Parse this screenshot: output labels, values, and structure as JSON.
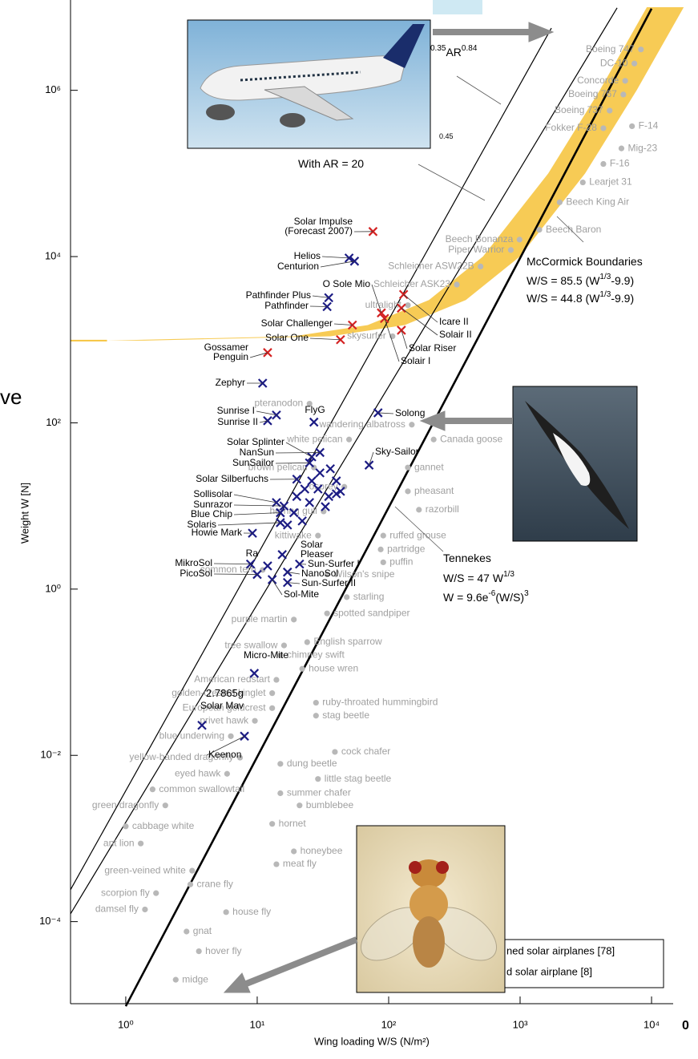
{
  "chart_data": {
    "type": "scatter",
    "xlabel": "Wing loading W/S (N/m²)",
    "ylabel": "Weight W [N]",
    "log_x": true,
    "log_y": true,
    "xlim": [
      0.38,
      14600
    ],
    "ylim": [
      1.03e-05,
      12200000.0
    ],
    "xticks": [
      {
        "value": 1,
        "label": "10⁰"
      },
      {
        "value": 10,
        "label": "10¹"
      },
      {
        "value": 100,
        "label": "10²"
      },
      {
        "value": 1000,
        "label": "10³"
      },
      {
        "value": 10000,
        "label": "10⁴"
      }
    ],
    "yticks": [
      {
        "value": 0.0001,
        "label": "10⁻⁴"
      },
      {
        "value": 0.01,
        "label": "10⁻²"
      },
      {
        "value": 1,
        "label": "10⁰"
      },
      {
        "value": 100,
        "label": "10²"
      },
      {
        "value": 10000,
        "label": "10⁴"
      },
      {
        "value": 1000000,
        "label": "10⁶"
      }
    ],
    "band": {
      "color": "#f6c542",
      "x_low": [
        0.72,
        18.95,
        69.3,
        202.6,
        521.7,
        1636,
        4036,
        9208
      ],
      "x_high": [
        1.38,
        36.2,
        132.3,
        386.6,
        995.6,
        3122,
        7704,
        17574
      ],
      "values": [
        975,
        1100,
        1500,
        3000,
        10000,
        100000,
        1000000,
        10000000
      ]
    },
    "lines": [
      {
        "color": "#000000",
        "width": 1.2,
        "x": [
          0.38,
          1730
        ],
        "values": [
          0.000242,
          5600000
        ]
      },
      {
        "color": "#000000",
        "width": 1.2,
        "x": [
          0.38,
          5470
        ],
        "values": [
          0.000124,
          9800000
        ]
      },
      {
        "color": "#000000",
        "width": 2.6,
        "x": [
          1,
          10000
        ],
        "values": [
          9.6e-06,
          9600000
        ]
      }
    ],
    "series": [
      {
        "color": "#b8b8b8",
        "marker": "dot",
        "labels": [
          "Boeing 747",
          "DC-10",
          "Concorde",
          "Boeing 767",
          "Boeing 737",
          "Fokker F-28",
          "F-14",
          "Mig-23",
          "F-16",
          "Learjet 31",
          "Beech King Air",
          "Beech Baron",
          "Beech Bonanza",
          "Piper Warrior",
          "Schleicher ASW22B",
          "Schleicher ASK23",
          "ultralight",
          "skysurfer",
          "pteranodon",
          "white pelican",
          "wandering albatross",
          "Canada goose",
          "gannet",
          "pheasant",
          "razorbill",
          "brown pelican",
          "osprey",
          "herring gull",
          "kittiwake",
          "ruffed grouse",
          "partridge",
          "puffin",
          "common tern",
          "Wilson's snipe",
          "starling",
          "spotted sandpiper",
          "purple martin",
          "tree swallow",
          "English sparrow",
          "chimney swift",
          "house wren",
          "American redstart",
          "golden-crested kinglet",
          "European goldcrest",
          "ruby-throated hummingbird",
          "stag beetle",
          "privet hawk",
          "blue underwing",
          "cock chafer",
          "yellow-banded dragonfly",
          "dung beetle",
          "eyed hawk",
          "little stag beetle",
          "common swallowtail",
          "summer chafer",
          "green dragonfly",
          "bumblebee",
          "hornet",
          "cabbage white",
          "ant lion",
          "honeybee",
          "meat fly",
          "green-veined white",
          "crane fly",
          "scorpion fly",
          "damsel fly",
          "house fly",
          "gnat",
          "hover fly",
          "midge"
        ],
        "x": [
          8300,
          7400,
          6300,
          6100,
          4800,
          4300,
          7100,
          5900,
          4300,
          3000,
          2000,
          1400,
          990,
          850,
          500,
          330,
          140,
          107,
          25,
          50,
          150,
          220,
          140,
          140,
          170,
          27,
          46,
          32,
          29,
          91,
          87,
          91,
          11,
          34,
          48,
          34,
          19,
          16,
          24,
          15,
          22,
          14,
          13,
          13,
          28,
          28,
          9.6,
          6.3,
          39,
          7.4,
          15,
          5.9,
          29,
          1.6,
          15,
          2.0,
          21,
          13,
          1.0,
          1.3,
          19,
          14,
          3.2,
          3.1,
          1.7,
          1.4,
          5.8,
          2.9,
          3.6,
          2.4
        ],
        "values": [
          3100000,
          2100000,
          1300000,
          890000,
          570000,
          350000,
          370000,
          200000,
          130000,
          78000,
          45000,
          21000,
          16000,
          12000,
          7600,
          4600,
          2600,
          1100,
          170,
          63,
          95,
          63,
          29,
          15,
          9,
          29,
          17,
          8.6,
          4.4,
          4.4,
          3.0,
          2.1,
          1.7,
          1.5,
          0.8,
          0.51,
          0.43,
          0.21,
          0.23,
          0.16,
          0.11,
          0.081,
          0.056,
          0.037,
          0.043,
          0.03,
          0.026,
          0.017,
          0.011,
          0.0094,
          0.0079,
          0.006,
          0.0052,
          0.0039,
          0.0035,
          0.0025,
          0.0025,
          0.0015,
          0.0014,
          0.00087,
          0.0007,
          0.00049,
          0.00041,
          0.00028,
          0.00022,
          0.00014,
          0.00013,
          7.6e-05,
          4.4e-05,
          2e-05
        ]
      },
      {
        "name": "ned solar airplanes [78]",
        "color": "#1c1c84",
        "marker": "x",
        "labels": [
          "Helios",
          "Centurion",
          "Pathfinder Plus",
          "Pathfinder",
          "Zephyr",
          "Sunrise I",
          "Sunrise II",
          "FlyG",
          "Solong",
          "Sky-Sailor",
          "Solar Splinter",
          "NanSun",
          "SunSailor",
          "Solar Silberfuchs",
          "Sollisolar",
          "Sunrazor",
          "Blue Chip",
          "Solaris",
          "Howie Mark",
          "Ra",
          [
            "Solar",
            "Pleaser"
          ],
          "MikroSol",
          "PicoSol",
          "Sun-Surfer I",
          "NanoSol",
          "Sun-Surfer II",
          "Sol-Mite",
          "Micro-Mite",
          "Solar Mav",
          "Keenon",
          null,
          null,
          null,
          null,
          null,
          null,
          null,
          null,
          null,
          null,
          null,
          null,
          null,
          null,
          null
        ],
        "x": [
          50,
          55,
          35,
          34,
          11,
          14,
          12,
          27,
          83,
          71,
          26,
          30,
          25,
          20,
          14,
          16,
          15,
          15,
          9.2,
          12,
          15.5,
          8.9,
          10,
          21,
          17,
          17,
          13,
          9.5,
          3.8,
          8.0,
          23,
          26,
          30,
          36,
          40,
          43,
          35,
          29,
          25,
          20,
          19,
          33,
          22,
          17,
          40
        ],
        "values": [
          9600,
          8800,
          3200,
          2500,
          300,
          124,
          106,
          102,
          132,
          31,
          39,
          44,
          33,
          21,
          11,
          10,
          8.3,
          6.3,
          4.7,
          1.9,
          2.6,
          2.0,
          1.5,
          2.0,
          1.6,
          1.2,
          1.3,
          0.097,
          0.023,
          0.017,
          16,
          20,
          25,
          28,
          20,
          15,
          13,
          16,
          11,
          13,
          8.3,
          9.8,
          6.6,
          5.9,
          14
        ]
      },
      {
        "name": "d solar airplane [8]",
        "color": "#d42222",
        "marker": "x",
        "labels": [
          [
            "Solar Impulse",
            "(Forecast 2007)"
          ],
          "O Sole Mio",
          "Icare II",
          "Solair II",
          "Solar Riser",
          "Solair I",
          "Solar Challenger",
          "Solar One",
          [
            "Gossamer",
            "Penguin"
          ]
        ],
        "x": [
          76,
          88,
          130,
          125,
          125,
          93,
          53,
          43,
          12
        ],
        "values": [
          20000,
          2100,
          3500,
          2400,
          1300,
          1800,
          1500,
          1000,
          700
        ]
      }
    ],
    "annotations": [
      [
        {
          "text": "0.35",
          "sup": true
        },
        {
          "text": "AR"
        },
        {
          "text": "0.84",
          "sup": true
        }
      ],
      [
        {
          "text": "0.45",
          "sup": true
        }
      ],
      [
        {
          "text": "With AR = 20"
        }
      ],
      [
        {
          "text": "McCormick Boundaries"
        }
      ],
      [
        {
          "text": "W/S = 85.5 (W"
        },
        {
          "text": "1/3",
          "sup": true
        },
        {
          "text": "-9.9)"
        }
      ],
      [
        {
          "text": "W/S = 44.8 (W"
        },
        {
          "text": "1/3",
          "sup": true
        },
        {
          "text": "-9.9)"
        }
      ],
      [
        {
          "text": "Tennekes"
        }
      ],
      [
        {
          "text": "W/S = 47 W"
        },
        {
          "text": "1/3",
          "sup": true
        }
      ],
      [
        {
          "text": "W = 9.6e"
        },
        {
          "text": "-6",
          "sup": true
        },
        {
          "text": "(W/S)"
        },
        {
          "text": "3",
          "sup": true
        }
      ],
      [
        {
          "text": "2.7865g"
        }
      ]
    ],
    "fragments": [
      "ve",
      "0"
    ]
  }
}
